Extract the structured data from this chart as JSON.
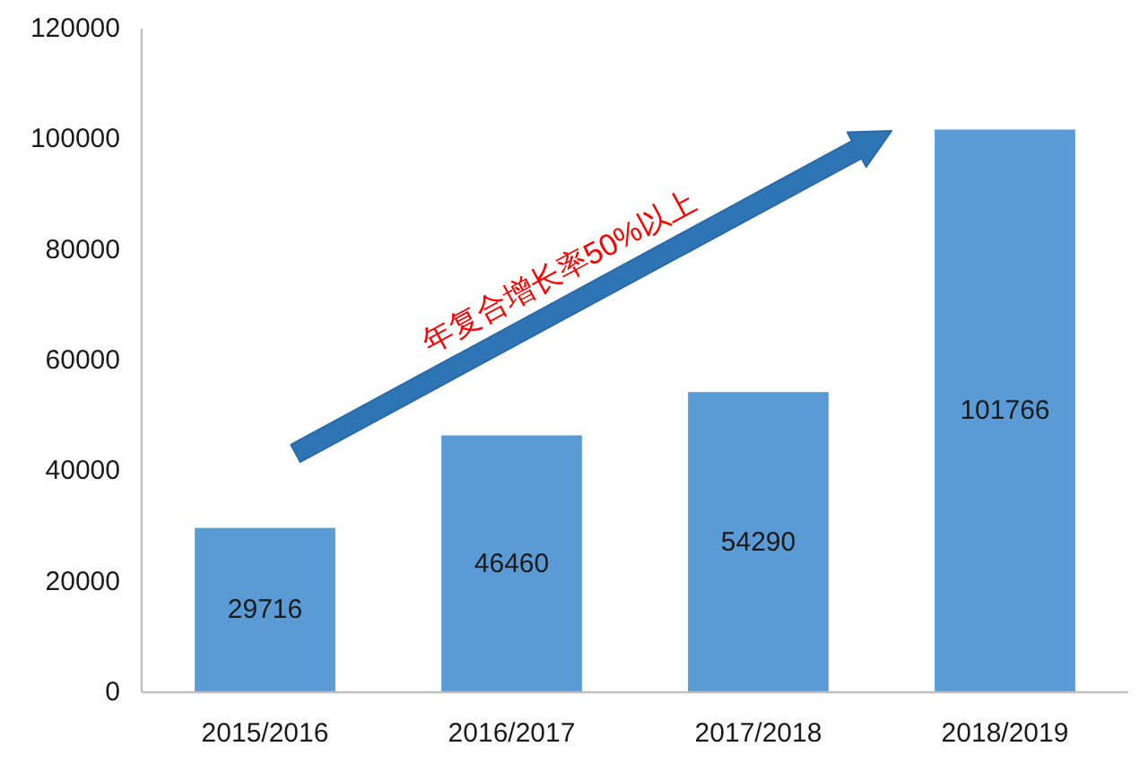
{
  "chart_data": {
    "type": "bar",
    "categories": [
      "2015/2016",
      "2016/2017",
      "2017/2018",
      "2018/2019"
    ],
    "values": [
      29716,
      46460,
      54290,
      101766
    ],
    "color": "#5b9bd5",
    "ylim": [
      0,
      120000
    ],
    "yticks": [
      0,
      20000,
      40000,
      60000,
      80000,
      100000,
      120000
    ],
    "data_labels": true,
    "annotations": [
      "年复合增长率50%以上"
    ]
  }
}
